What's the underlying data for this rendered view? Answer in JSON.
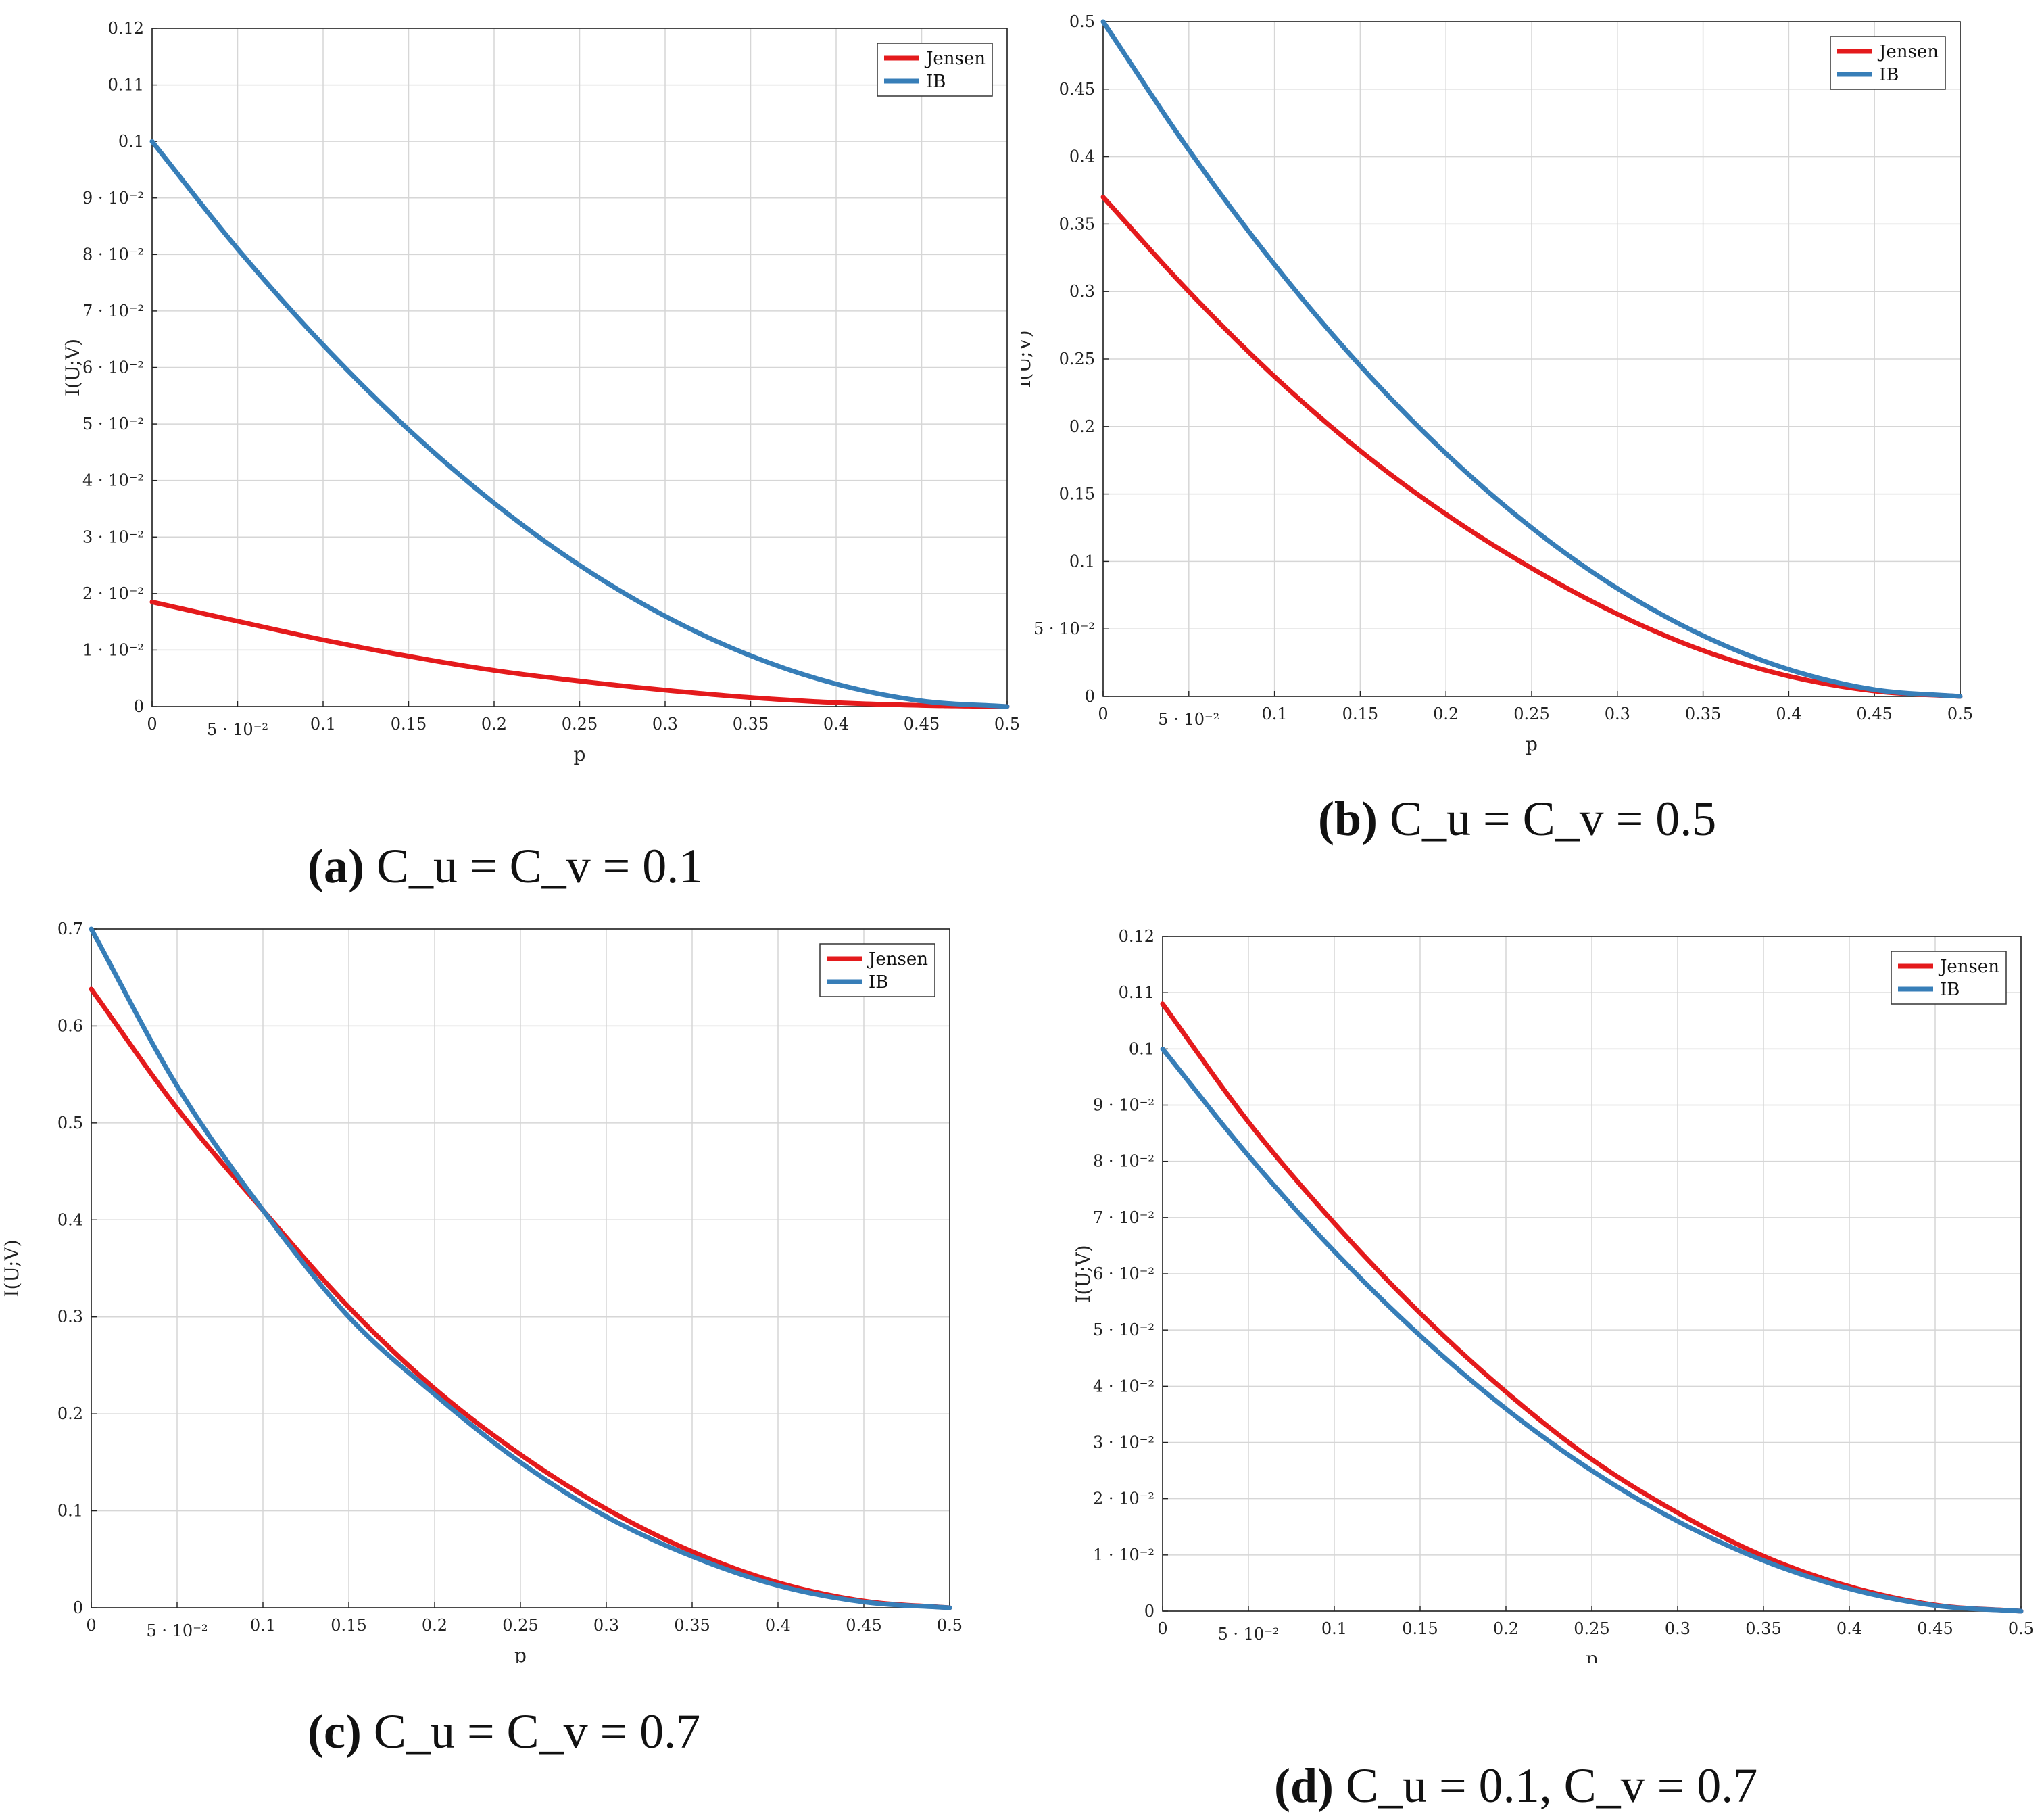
{
  "chart_data": [
    {
      "id": "a",
      "type": "line",
      "xlabel": "p",
      "ylabel": "I(U;V)",
      "xlim": [
        0,
        0.5
      ],
      "ylim": [
        0,
        0.12
      ],
      "x_ticks": [
        0,
        0.05,
        0.1,
        0.15,
        0.2,
        0.25,
        0.3,
        0.35,
        0.4,
        0.45,
        0.5
      ],
      "x_tick_labels": [
        "0",
        "5 · 10⁻²",
        "0.1",
        "0.15",
        "0.2",
        "0.25",
        "0.3",
        "0.35",
        "0.4",
        "0.45",
        "0.5"
      ],
      "y_ticks": [
        0,
        0.01,
        0.02,
        0.03,
        0.04,
        0.05,
        0.06,
        0.07,
        0.08,
        0.09,
        0.1,
        0.11,
        0.12
      ],
      "y_tick_labels": [
        "0",
        "1 · 10⁻²",
        "2 · 10⁻²",
        "3 · 10⁻²",
        "4 · 10⁻²",
        "5 · 10⁻²",
        "6 · 10⁻²",
        "7 · 10⁻²",
        "8 · 10⁻²",
        "9 · 10⁻²",
        "0.1",
        "0.11",
        "0.12"
      ],
      "grid": true,
      "legend_position": "top-right",
      "x": [
        0,
        0.05,
        0.1,
        0.15,
        0.2,
        0.25,
        0.3,
        0.35,
        0.4,
        0.45,
        0.5
      ],
      "series": [
        {
          "name": "Jensen",
          "color": "#e41a1c",
          "values": [
            0.0185,
            0.0151,
            0.0118,
            0.0089,
            0.0064,
            0.0045,
            0.0029,
            0.0016,
            0.0007,
            0.0002,
            0
          ]
        },
        {
          "name": "IB",
          "color": "#377eb8",
          "values": [
            0.1,
            0.081,
            0.064,
            0.049,
            0.036,
            0.025,
            0.016,
            0.009,
            0.004,
            0.001,
            0
          ]
        }
      ],
      "caption": {
        "letter": "(a)",
        "text": "C_u = C_v = 0.1"
      }
    },
    {
      "id": "b",
      "type": "line",
      "xlabel": "p",
      "ylabel": "I(U;V)",
      "xlim": [
        0,
        0.5
      ],
      "ylim": [
        0,
        0.5
      ],
      "x_ticks": [
        0,
        0.05,
        0.1,
        0.15,
        0.2,
        0.25,
        0.3,
        0.35,
        0.4,
        0.45,
        0.5
      ],
      "x_tick_labels": [
        "0",
        "5 · 10⁻²",
        "0.1",
        "0.15",
        "0.2",
        "0.25",
        "0.3",
        "0.35",
        "0.4",
        "0.45",
        "0.5"
      ],
      "y_ticks": [
        0,
        0.05,
        0.1,
        0.15,
        0.2,
        0.25,
        0.3,
        0.35,
        0.4,
        0.45,
        0.5
      ],
      "y_tick_labels": [
        "0",
        "5 · 10⁻²",
        "0.1",
        "0.15",
        "0.2",
        "0.25",
        "0.3",
        "0.35",
        "0.4",
        "0.45",
        "0.5"
      ],
      "grid": true,
      "legend_position": "top-right",
      "x": [
        0,
        0.05,
        0.1,
        0.15,
        0.2,
        0.25,
        0.3,
        0.35,
        0.4,
        0.45,
        0.5
      ],
      "series": [
        {
          "name": "Jensen",
          "color": "#e41a1c",
          "values": [
            0.37,
            0.3,
            0.237,
            0.182,
            0.135,
            0.095,
            0.061,
            0.034,
            0.015,
            0.004,
            0
          ]
        },
        {
          "name": "IB",
          "color": "#377eb8",
          "values": [
            0.5,
            0.405,
            0.32,
            0.245,
            0.18,
            0.125,
            0.08,
            0.045,
            0.02,
            0.005,
            0
          ]
        }
      ],
      "caption": {
        "letter": "(b)",
        "text": "C_u = C_v = 0.5"
      }
    },
    {
      "id": "c",
      "type": "line",
      "xlabel": "p",
      "ylabel": "I(U;V)",
      "xlim": [
        0,
        0.5
      ],
      "ylim": [
        0,
        0.7
      ],
      "x_ticks": [
        0,
        0.05,
        0.1,
        0.15,
        0.2,
        0.25,
        0.3,
        0.35,
        0.4,
        0.45,
        0.5
      ],
      "x_tick_labels": [
        "0",
        "5 · 10⁻²",
        "0.1",
        "0.15",
        "0.2",
        "0.25",
        "0.3",
        "0.35",
        "0.4",
        "0.45",
        "0.5"
      ],
      "y_ticks": [
        0,
        0.1,
        0.2,
        0.3,
        0.4,
        0.5,
        0.6,
        0.7
      ],
      "y_tick_labels": [
        "0",
        "0.1",
        "0.2",
        "0.3",
        "0.4",
        "0.5",
        "0.6",
        "0.7"
      ],
      "grid": true,
      "legend_position": "top-right",
      "x": [
        0,
        0.05,
        0.1,
        0.15,
        0.2,
        0.25,
        0.3,
        0.35,
        0.4,
        0.45,
        0.5
      ],
      "series": [
        {
          "name": "Jensen",
          "color": "#e41a1c",
          "values": [
            0.638,
            0.515,
            0.41,
            0.31,
            0.226,
            0.158,
            0.102,
            0.058,
            0.026,
            0.007,
            0
          ]
        },
        {
          "name": "IB",
          "color": "#377eb8",
          "values": [
            0.7,
            0.538,
            0.41,
            0.3,
            0.22,
            0.15,
            0.094,
            0.053,
            0.023,
            0.006,
            0
          ]
        }
      ],
      "caption": {
        "letter": "(c)",
        "text": "C_u = C_v = 0.7"
      }
    },
    {
      "id": "d",
      "type": "line",
      "xlabel": "p",
      "ylabel": "I(U;V)",
      "xlim": [
        0,
        0.5
      ],
      "ylim": [
        0,
        0.12
      ],
      "x_ticks": [
        0,
        0.05,
        0.1,
        0.15,
        0.2,
        0.25,
        0.3,
        0.35,
        0.4,
        0.45,
        0.5
      ],
      "x_tick_labels": [
        "0",
        "5 · 10⁻²",
        "0.1",
        "0.15",
        "0.2",
        "0.25",
        "0.3",
        "0.35",
        "0.4",
        "0.45",
        "0.5"
      ],
      "y_ticks": [
        0,
        0.01,
        0.02,
        0.03,
        0.04,
        0.05,
        0.06,
        0.07,
        0.08,
        0.09,
        0.1,
        0.11,
        0.12
      ],
      "y_tick_labels": [
        "0",
        "1 · 10⁻²",
        "2 · 10⁻²",
        "3 · 10⁻²",
        "4 · 10⁻²",
        "5 · 10⁻²",
        "6 · 10⁻²",
        "7 · 10⁻²",
        "8 · 10⁻²",
        "9 · 10⁻²",
        "0.1",
        "0.11",
        "0.12"
      ],
      "grid": true,
      "legend_position": "top-right",
      "x": [
        0,
        0.05,
        0.1,
        0.15,
        0.2,
        0.25,
        0.3,
        0.35,
        0.4,
        0.45,
        0.5
      ],
      "series": [
        {
          "name": "Jensen",
          "color": "#e41a1c",
          "values": [
            0.108,
            0.087,
            0.069,
            0.053,
            0.039,
            0.027,
            0.0175,
            0.0098,
            0.0044,
            0.0011,
            0
          ]
        },
        {
          "name": "IB",
          "color": "#377eb8",
          "values": [
            0.1,
            0.081,
            0.064,
            0.049,
            0.036,
            0.025,
            0.016,
            0.009,
            0.004,
            0.001,
            0
          ]
        }
      ],
      "caption": {
        "letter": "(d)",
        "text": "C_u = 0.1, C_v = 0.7"
      }
    }
  ]
}
